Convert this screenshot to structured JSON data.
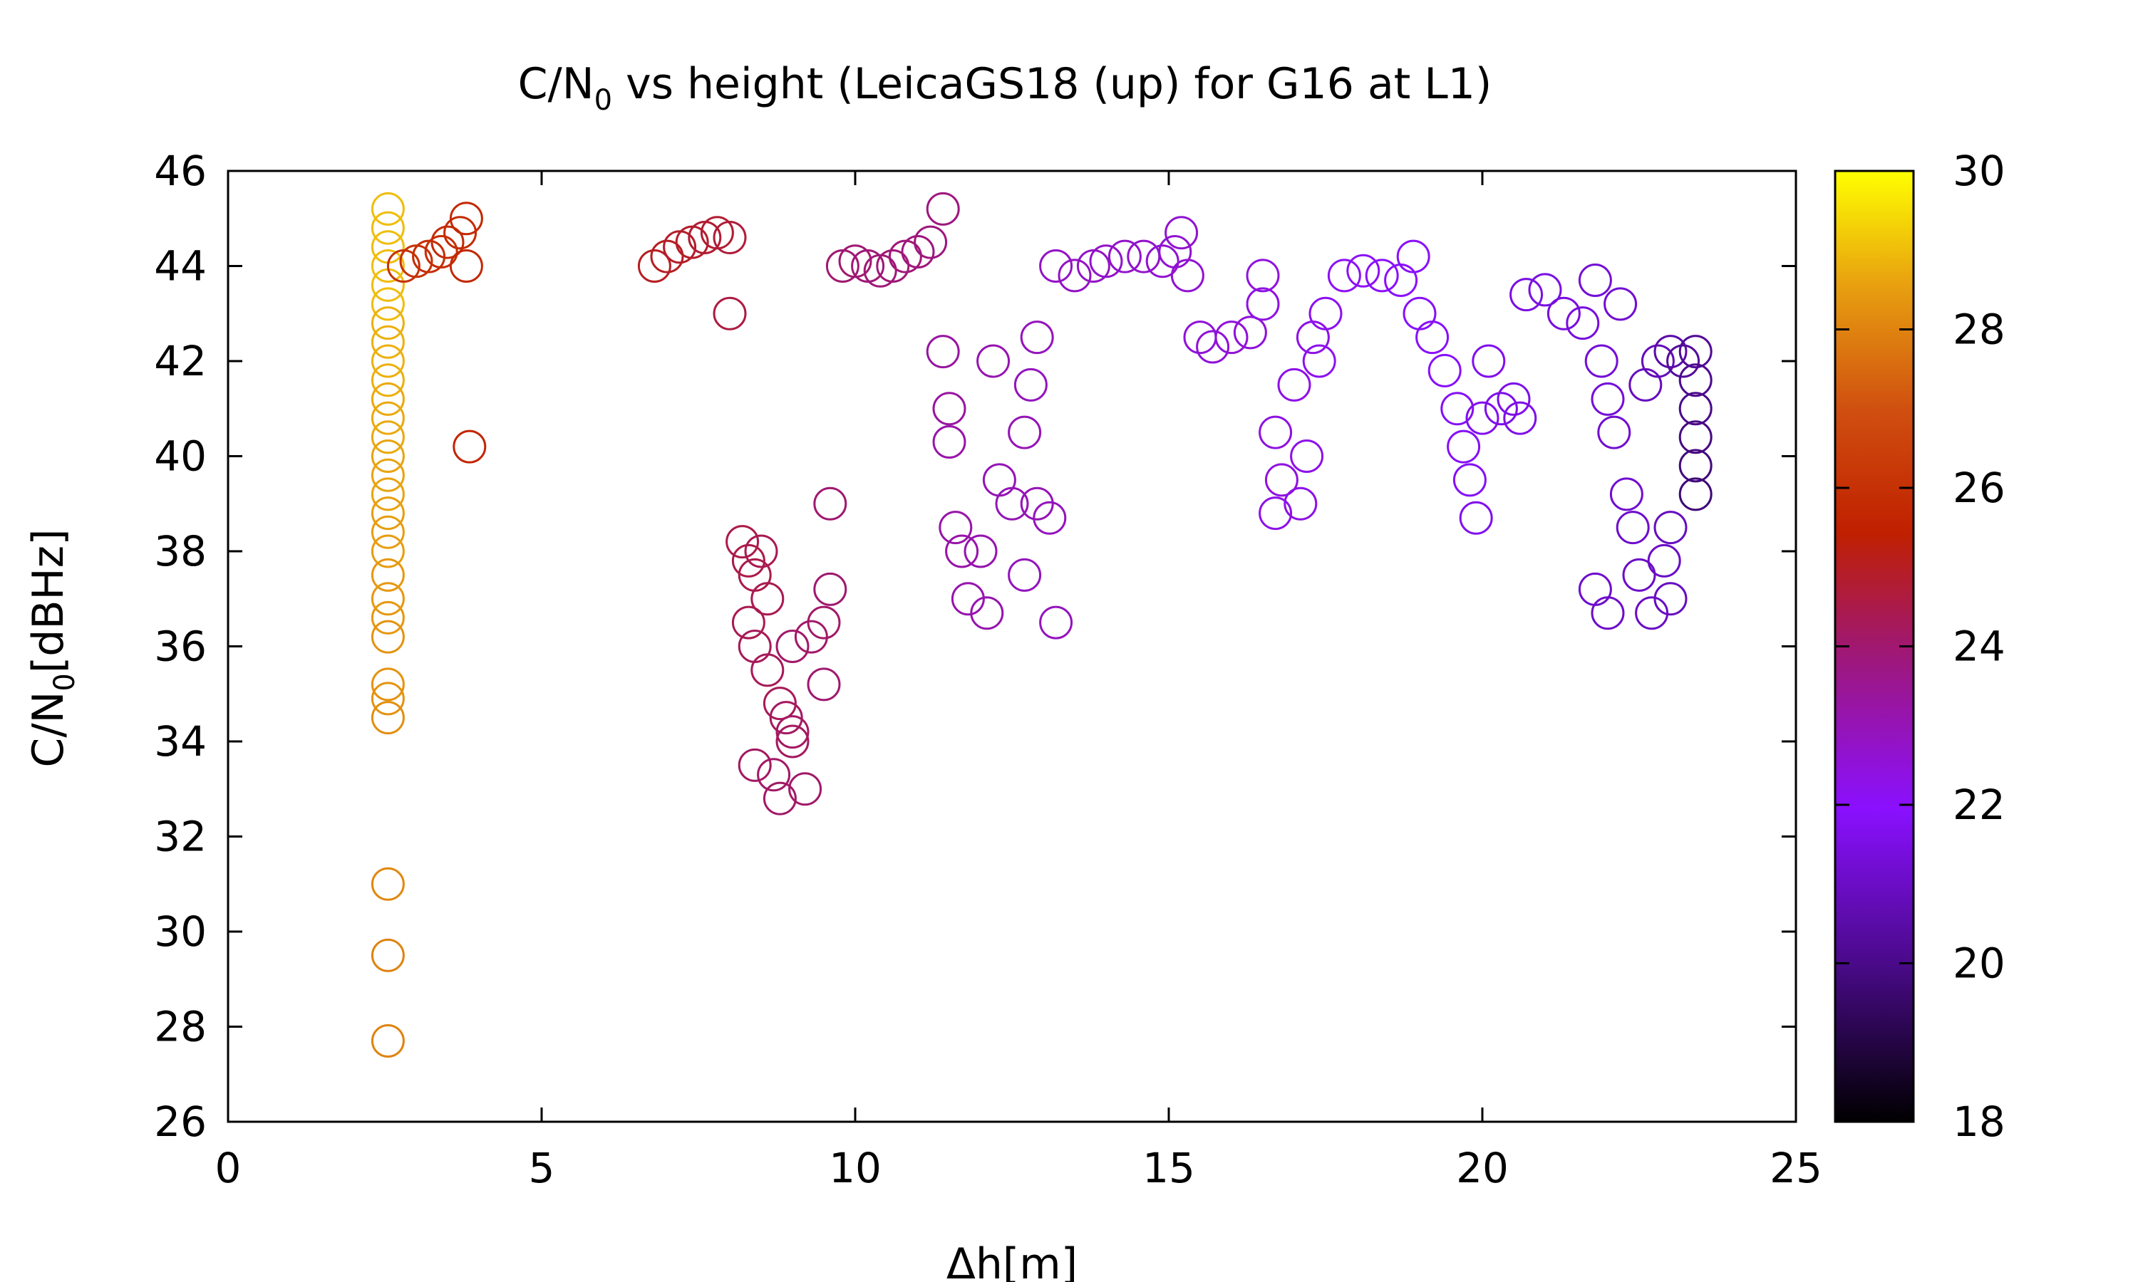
{
  "chart_data": {
    "type": "scatter",
    "title": "C/N",
    "title_subscript": "0",
    "title_suffix": " vs height (LeicaGS18 (up) for G16 at L1)",
    "xlabel": "Δh[m]",
    "ylabel": "C/N",
    "ylabel_subscript": "0",
    "ylabel_suffix": "[dBHz]",
    "xlim": [
      0,
      25
    ],
    "ylim": [
      26,
      46
    ],
    "x_ticks": [
      0,
      5,
      10,
      15,
      20,
      25
    ],
    "y_ticks": [
      26,
      28,
      30,
      32,
      34,
      36,
      38,
      40,
      42,
      44,
      46
    ],
    "grid": false,
    "marker": "open-circle",
    "colorbar": {
      "range": [
        18,
        30
      ],
      "ticks": [
        18,
        20,
        22,
        24,
        26,
        28,
        30
      ],
      "palette": "black-purple-red-orange-yellow"
    },
    "points": [
      [
        2.55,
        45.2,
        29
      ],
      [
        2.55,
        44.8,
        29
      ],
      [
        2.55,
        44.4,
        29
      ],
      [
        2.55,
        44.0,
        29
      ],
      [
        2.55,
        43.6,
        29
      ],
      [
        2.55,
        43.2,
        29
      ],
      [
        2.55,
        42.8,
        28.8
      ],
      [
        2.55,
        42.4,
        28.8
      ],
      [
        2.55,
        42.0,
        28.8
      ],
      [
        2.55,
        41.6,
        28.8
      ],
      [
        2.55,
        41.2,
        28.7
      ],
      [
        2.55,
        40.8,
        28.7
      ],
      [
        2.55,
        40.4,
        28.7
      ],
      [
        2.55,
        40.0,
        28.6
      ],
      [
        2.55,
        39.6,
        28.6
      ],
      [
        2.55,
        39.2,
        28.6
      ],
      [
        2.55,
        38.8,
        28.5
      ],
      [
        2.55,
        38.4,
        28.5
      ],
      [
        2.55,
        38.0,
        28.5
      ],
      [
        2.55,
        37.5,
        28.4
      ],
      [
        2.55,
        37.0,
        28.4
      ],
      [
        2.55,
        36.6,
        28.4
      ],
      [
        2.55,
        36.2,
        28.3
      ],
      [
        2.55,
        35.2,
        28.3
      ],
      [
        2.55,
        34.9,
        28.3
      ],
      [
        2.55,
        34.5,
        28.2
      ],
      [
        2.55,
        31.0,
        28.1
      ],
      [
        2.55,
        29.5,
        28
      ],
      [
        2.55,
        27.7,
        28
      ],
      [
        2.8,
        44.0,
        26
      ],
      [
        3.0,
        44.1,
        26
      ],
      [
        3.2,
        44.2,
        25.9
      ],
      [
        3.4,
        44.3,
        25.9
      ],
      [
        3.5,
        44.5,
        25.8
      ],
      [
        3.7,
        44.7,
        25.8
      ],
      [
        3.8,
        45.0,
        25.7
      ],
      [
        3.8,
        44.0,
        25.7
      ],
      [
        3.85,
        40.2,
        25.6
      ],
      [
        6.8,
        44.0,
        25
      ],
      [
        7.0,
        44.2,
        25
      ],
      [
        7.2,
        44.4,
        24.9
      ],
      [
        7.4,
        44.5,
        24.9
      ],
      [
        7.6,
        44.6,
        24.8
      ],
      [
        7.8,
        44.7,
        24.8
      ],
      [
        8.0,
        44.6,
        24.7
      ],
      [
        8.0,
        43.0,
        24.6
      ],
      [
        8.2,
        38.2,
        24.5
      ],
      [
        8.3,
        37.8,
        24.5
      ],
      [
        8.4,
        37.5,
        24.5
      ],
      [
        8.5,
        38.0,
        24.4
      ],
      [
        8.6,
        37.0,
        24.4
      ],
      [
        8.3,
        36.5,
        24.4
      ],
      [
        8.4,
        36.0,
        24.3
      ],
      [
        8.6,
        35.5,
        24.3
      ],
      [
        8.8,
        34.8,
        24.3
      ],
      [
        8.9,
        34.5,
        24.2
      ],
      [
        9.0,
        34.2,
        24.2
      ],
      [
        9.0,
        34.0,
        24.2
      ],
      [
        8.4,
        33.5,
        24.2
      ],
      [
        8.7,
        33.3,
        24.1
      ],
      [
        8.8,
        32.8,
        24.1
      ],
      [
        9.2,
        33.0,
        24.1
      ],
      [
        9.0,
        36.0,
        24.1
      ],
      [
        9.3,
        36.2,
        24.1
      ],
      [
        9.5,
        36.5,
        24.1
      ],
      [
        9.6,
        37.2,
        24
      ],
      [
        9.5,
        35.2,
        24
      ],
      [
        9.6,
        39.0,
        24
      ],
      [
        9.8,
        44.0,
        24
      ],
      [
        10.0,
        44.1,
        24
      ],
      [
        10.2,
        44.0,
        23.9
      ],
      [
        10.4,
        43.9,
        23.9
      ],
      [
        10.6,
        44.0,
        23.9
      ],
      [
        10.8,
        44.2,
        23.9
      ],
      [
        11.0,
        44.3,
        23.8
      ],
      [
        11.2,
        44.5,
        23.8
      ],
      [
        11.4,
        45.2,
        23.8
      ],
      [
        11.4,
        42.2,
        23.3
      ],
      [
        11.5,
        41.0,
        23.3
      ],
      [
        11.5,
        40.3,
        23.2
      ],
      [
        11.6,
        38.5,
        23.2
      ],
      [
        11.7,
        38.0,
        23.2
      ],
      [
        11.8,
        37.0,
        23.1
      ],
      [
        12.0,
        38.0,
        23.1
      ],
      [
        12.1,
        36.7,
        23.1
      ],
      [
        12.2,
        42.0,
        23.1
      ],
      [
        12.3,
        39.5,
        23
      ],
      [
        12.5,
        39.0,
        23
      ],
      [
        12.7,
        40.5,
        23
      ],
      [
        12.9,
        39.0,
        23
      ],
      [
        13.1,
        38.7,
        22.9
      ],
      [
        12.7,
        37.5,
        22.9
      ],
      [
        13.2,
        36.5,
        22.9
      ],
      [
        12.8,
        41.5,
        22.9
      ],
      [
        12.9,
        42.5,
        22.9
      ],
      [
        13.2,
        44.0,
        22.8
      ],
      [
        13.5,
        43.8,
        22.8
      ],
      [
        13.8,
        44.0,
        22.8
      ],
      [
        14.0,
        44.1,
        22.7
      ],
      [
        14.3,
        44.2,
        22.7
      ],
      [
        14.6,
        44.2,
        22.7
      ],
      [
        14.9,
        44.1,
        22.6
      ],
      [
        15.1,
        44.3,
        22.6
      ],
      [
        15.2,
        44.7,
        22.6
      ],
      [
        15.3,
        43.8,
        22.6
      ],
      [
        15.5,
        42.5,
        22.5
      ],
      [
        15.7,
        42.3,
        22.5
      ],
      [
        16.0,
        42.5,
        22.5
      ],
      [
        16.3,
        42.6,
        22.5
      ],
      [
        16.5,
        43.2,
        22.4
      ],
      [
        16.5,
        43.8,
        22.4
      ],
      [
        16.7,
        40.5,
        22.4
      ],
      [
        16.8,
        39.5,
        22.4
      ],
      [
        16.7,
        38.8,
        22.3
      ],
      [
        17.1,
        39.0,
        22.3
      ],
      [
        17.2,
        40.0,
        22.3
      ],
      [
        17.0,
        41.5,
        22.3
      ],
      [
        17.3,
        42.5,
        22.3
      ],
      [
        17.4,
        42.0,
        22.2
      ],
      [
        17.5,
        43.0,
        22.2
      ],
      [
        17.8,
        43.8,
        22.1
      ],
      [
        18.1,
        43.9,
        22.1
      ],
      [
        18.4,
        43.8,
        22
      ],
      [
        18.7,
        43.7,
        22
      ],
      [
        18.9,
        44.2,
        22
      ],
      [
        19.0,
        43.0,
        21.9
      ],
      [
        19.2,
        42.5,
        21.9
      ],
      [
        19.4,
        41.8,
        21.9
      ],
      [
        19.6,
        41.0,
        21.8
      ],
      [
        19.7,
        40.2,
        21.8
      ],
      [
        19.8,
        39.5,
        21.8
      ],
      [
        19.9,
        38.7,
        21.7
      ],
      [
        20.0,
        40.8,
        21.7
      ],
      [
        20.1,
        42.0,
        21.7
      ],
      [
        20.3,
        41.0,
        21.6
      ],
      [
        20.5,
        41.2,
        21.6
      ],
      [
        20.6,
        40.8,
        21.6
      ],
      [
        20.7,
        43.4,
        21.5
      ],
      [
        21.0,
        43.5,
        21.5
      ],
      [
        21.3,
        43.0,
        21.4
      ],
      [
        21.6,
        42.8,
        21.4
      ],
      [
        21.8,
        43.7,
        21.3
      ],
      [
        21.9,
        42.0,
        21.3
      ],
      [
        22.0,
        41.2,
        21.3
      ],
      [
        22.1,
        40.5,
        21.2
      ],
      [
        22.2,
        43.2,
        21.2
      ],
      [
        22.3,
        39.2,
        21.2
      ],
      [
        22.4,
        38.5,
        21.1
      ],
      [
        22.0,
        36.7,
        21.1
      ],
      [
        21.8,
        37.2,
        21.1
      ],
      [
        22.5,
        37.5,
        21
      ],
      [
        22.7,
        36.7,
        21
      ],
      [
        22.9,
        37.8,
        21
      ],
      [
        23.0,
        38.5,
        20.9
      ],
      [
        23.0,
        37.0,
        20.9
      ],
      [
        22.6,
        41.5,
        20.9
      ],
      [
        22.8,
        42.0,
        20.8
      ],
      [
        23.0,
        42.2,
        20.5
      ],
      [
        23.2,
        42.0,
        20.3
      ],
      [
        23.4,
        42.2,
        20.2
      ],
      [
        23.4,
        41.6,
        20.1
      ],
      [
        23.4,
        41.0,
        20
      ],
      [
        23.4,
        40.4,
        19.9
      ],
      [
        23.4,
        39.8,
        19.8
      ],
      [
        23.4,
        39.2,
        19.7
      ]
    ]
  }
}
